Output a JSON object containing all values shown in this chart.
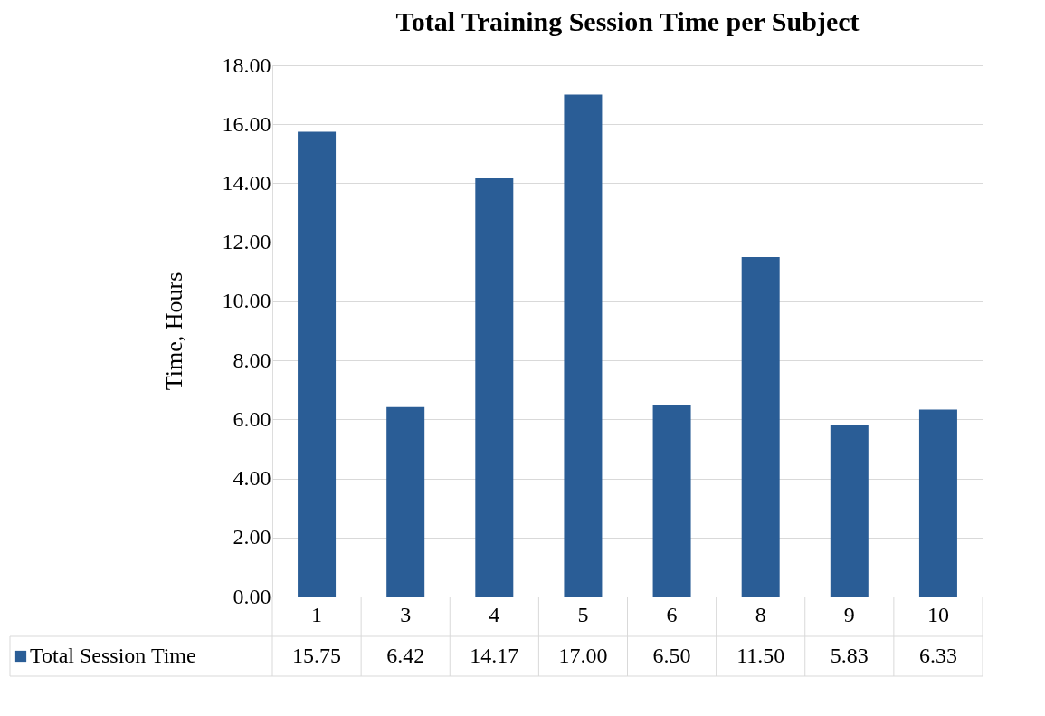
{
  "chart_data": {
    "type": "bar",
    "title": "Total Training Session Time per Subject",
    "ylabel": "Time, Hours",
    "categories": [
      "1",
      "3",
      "4",
      "5",
      "6",
      "8",
      "9",
      "10"
    ],
    "series": [
      {
        "name": "Total Session Time",
        "color": "#2a5d96",
        "values": [
          15.75,
          6.42,
          14.17,
          17.0,
          6.5,
          11.5,
          5.83,
          6.33
        ],
        "value_labels": [
          "15.75",
          "6.42",
          "14.17",
          "17.00",
          "6.50",
          "11.50",
          "5.83",
          "6.33"
        ]
      }
    ],
    "ylim": [
      0,
      18
    ],
    "yticks": [
      {
        "value": 0,
        "label": "0.00"
      },
      {
        "value": 2,
        "label": "2.00"
      },
      {
        "value": 4,
        "label": "4.00"
      },
      {
        "value": 6,
        "label": "6.00"
      },
      {
        "value": 8,
        "label": "8.00"
      },
      {
        "value": 10,
        "label": "10.00"
      },
      {
        "value": 12,
        "label": "12.00"
      },
      {
        "value": 14,
        "label": "14.00"
      },
      {
        "value": 16,
        "label": "16.00"
      },
      {
        "value": 18,
        "label": "18.00"
      }
    ],
    "grid": "y",
    "legend": "bottom"
  }
}
